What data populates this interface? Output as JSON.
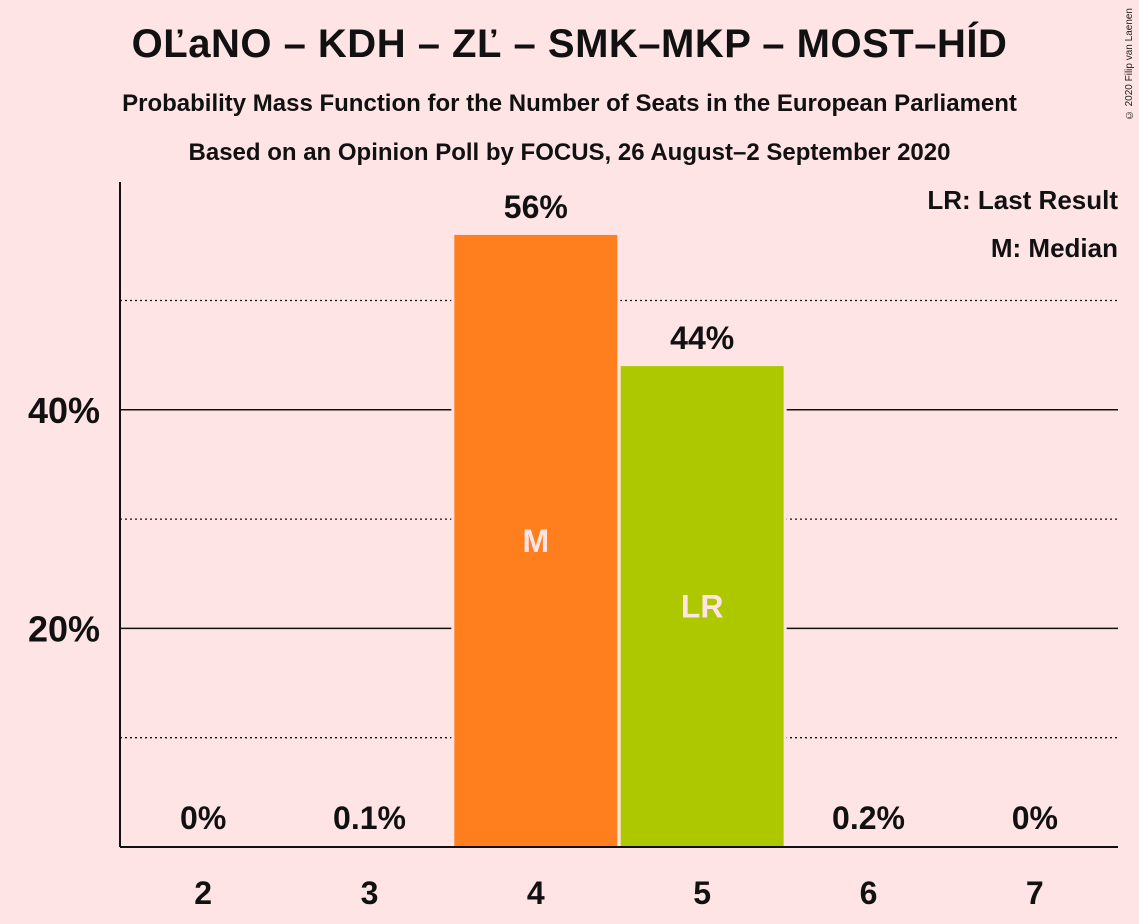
{
  "title": "OĽaNO – KDH – ZĽ – SMK–MKP – MOST–HÍD",
  "subtitle1": "Probability Mass Function for the Number of Seats in the European Parliament",
  "subtitle2": "Based on an Opinion Poll by FOCUS, 26 August–2 September 2020",
  "copyright": "© 2020 Filip van Laenen",
  "legend": {
    "lr": "LR: Last Result",
    "m": "M: Median"
  },
  "colors": {
    "background": "#FFE4E6",
    "median_bar": "#FF7F1E",
    "last_result_bar": "#AEC800",
    "inside_label": "#FFE4E6"
  },
  "chart_data": {
    "type": "bar",
    "categories": [
      "2",
      "3",
      "4",
      "5",
      "6",
      "7"
    ],
    "values": [
      0,
      0.1,
      56,
      44,
      0.2,
      0
    ],
    "value_labels": [
      "0%",
      "0.1%",
      "56%",
      "44%",
      "0.2%",
      "0%"
    ],
    "bar_markers": [
      "",
      "",
      "M",
      "LR",
      "",
      ""
    ],
    "ylim": [
      0,
      61
    ],
    "yticks": [
      20,
      40
    ],
    "ytick_labels": [
      "20%",
      "40%"
    ],
    "minor_gridlines": [
      10,
      30,
      50
    ],
    "legend_position": "top-right",
    "xlabel": "",
    "ylabel": ""
  }
}
